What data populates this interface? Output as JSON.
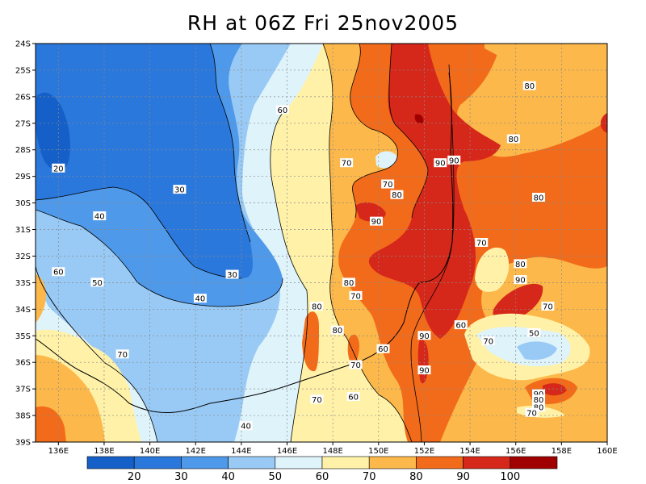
{
  "title": "RH at 06Z Fri 25nov2005",
  "map": {
    "lat_labels": [
      "24S",
      "25S",
      "26S",
      "27S",
      "28S",
      "29S",
      "30S",
      "31S",
      "32S",
      "33S",
      "34S",
      "35S",
      "36S",
      "37S",
      "38S",
      "39S"
    ],
    "lon_labels": [
      "136E",
      "138E",
      "140E",
      "142E",
      "144E",
      "146E",
      "148E",
      "150E",
      "152E",
      "154E",
      "156E",
      "158E",
      "160E"
    ],
    "contour_labels": [
      {
        "text": "60",
        "lon": 145.8,
        "lat": -26.5
      },
      {
        "text": "70",
        "lon": 148.6,
        "lat": -28.5
      },
      {
        "text": "70",
        "lon": 150.4,
        "lat": -29.3
      },
      {
        "text": "80",
        "lon": 150.8,
        "lat": -29.7
      },
      {
        "text": "90",
        "lon": 149.9,
        "lat": -30.7
      },
      {
        "text": "90",
        "lon": 152.7,
        "lat": -28.5
      },
      {
        "text": "90",
        "lon": 153.3,
        "lat": -28.4
      },
      {
        "text": "80",
        "lon": 155.9,
        "lat": -27.6
      },
      {
        "text": "80",
        "lon": 156.6,
        "lat": -25.6
      },
      {
        "text": "80",
        "lon": 157.0,
        "lat": -29.8
      },
      {
        "text": "70",
        "lon": 154.5,
        "lat": -31.5
      },
      {
        "text": "80",
        "lon": 156.2,
        "lat": -32.3
      },
      {
        "text": "90",
        "lon": 156.2,
        "lat": -32.9
      },
      {
        "text": "70",
        "lon": 157.4,
        "lat": -33.9
      },
      {
        "text": "60",
        "lon": 153.6,
        "lat": -34.6
      },
      {
        "text": "70",
        "lon": 154.8,
        "lat": -35.2
      },
      {
        "text": "50",
        "lon": 156.8,
        "lat": -34.9
      },
      {
        "text": "90",
        "lon": 157.0,
        "lat": -37.2
      },
      {
        "text": "80",
        "lon": 157.0,
        "lat": -37.4
      },
      {
        "text": "80",
        "lon": 157.0,
        "lat": -37.7
      },
      {
        "text": "70",
        "lon": 156.7,
        "lat": -37.9
      },
      {
        "text": "20",
        "lon": 136.0,
        "lat": -28.7
      },
      {
        "text": "30",
        "lon": 141.3,
        "lat": -29.5
      },
      {
        "text": "40",
        "lon": 137.8,
        "lat": -30.5
      },
      {
        "text": "30",
        "lon": 143.6,
        "lat": -32.7
      },
      {
        "text": "40",
        "lon": 142.2,
        "lat": -33.6
      },
      {
        "text": "60",
        "lon": 136.0,
        "lat": -32.6
      },
      {
        "text": "50",
        "lon": 137.7,
        "lat": -33.0
      },
      {
        "text": "70",
        "lon": 138.8,
        "lat": -35.7
      },
      {
        "text": "80",
        "lon": 148.7,
        "lat": -33.0
      },
      {
        "text": "70",
        "lon": 149.0,
        "lat": -33.5
      },
      {
        "text": "80",
        "lon": 147.3,
        "lat": -33.9
      },
      {
        "text": "80",
        "lon": 148.2,
        "lat": -34.8
      },
      {
        "text": "60",
        "lon": 150.2,
        "lat": -35.5
      },
      {
        "text": "90",
        "lon": 152.0,
        "lat": -35.0
      },
      {
        "text": "90",
        "lon": 152.0,
        "lat": -36.3
      },
      {
        "text": "70",
        "lon": 149.0,
        "lat": -36.1
      },
      {
        "text": "70",
        "lon": 147.3,
        "lat": -37.4
      },
      {
        "text": "60",
        "lon": 148.9,
        "lat": -37.3
      },
      {
        "text": "40",
        "lon": 144.2,
        "lat": -38.4
      }
    ]
  },
  "colorbar": {
    "labels": [
      "20",
      "30",
      "40",
      "50",
      "60",
      "70",
      "80",
      "90",
      "100"
    ],
    "colors": [
      "#1560c8",
      "#2b78dc",
      "#4f99ea",
      "#99caf5",
      "#dff3fb",
      "#fff2a8",
      "#fcb84a",
      "#f26b1a",
      "#d6281a",
      "#a00000"
    ]
  }
}
